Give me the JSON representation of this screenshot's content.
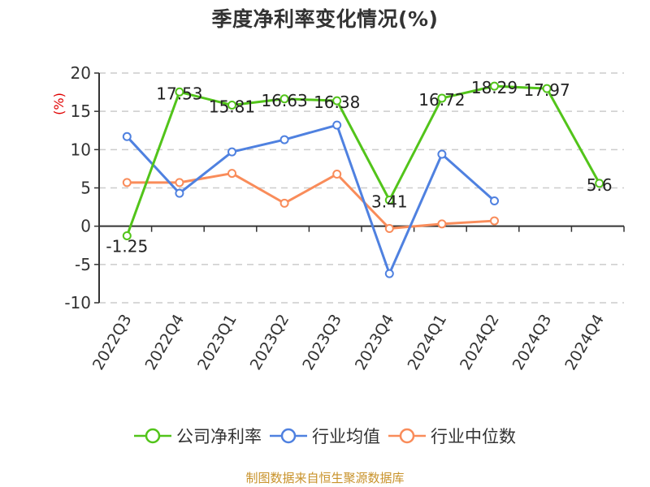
{
  "chart_data": {
    "type": "line",
    "title": "季度净利率变化情况(%)",
    "xlabel": "",
    "ylabel": "(%)",
    "ylim": [
      -10,
      20
    ],
    "yticks": [
      20,
      15,
      10,
      5,
      0,
      -5,
      -10
    ],
    "grid": true,
    "legend_position": "bottom",
    "categories": [
      "2022Q3",
      "2022Q4",
      "2023Q1",
      "2023Q2",
      "2023Q3",
      "2023Q4",
      "2024Q1",
      "2024Q2",
      "2024Q3",
      "2024Q4"
    ],
    "series": [
      {
        "name": "公司净利率",
        "color": "#52c41a",
        "labeled": true,
        "values": [
          -1.25,
          17.53,
          15.81,
          16.63,
          16.38,
          3.41,
          16.72,
          18.29,
          17.97,
          5.6
        ]
      },
      {
        "name": "行业均值",
        "color": "#4f81e0",
        "labeled": false,
        "values": [
          11.7,
          4.3,
          9.7,
          11.3,
          13.2,
          -6.2,
          9.4,
          3.3,
          null,
          null
        ]
      },
      {
        "name": "行业中位数",
        "color": "#f98c5a",
        "labeled": false,
        "values": [
          5.7,
          5.7,
          6.9,
          3.0,
          6.8,
          -0.3,
          0.3,
          0.7,
          null,
          null
        ]
      }
    ]
  },
  "title": "季度净利率变化情况(%)",
  "y_axis_label": "(%)",
  "legend": [
    {
      "label": "公司净利率",
      "color": "#52c41a"
    },
    {
      "label": "行业均值",
      "color": "#4f81e0"
    },
    {
      "label": "行业中位数",
      "color": "#f98c5a"
    }
  ],
  "source_text": "制图数据来自恒生聚源数据库"
}
